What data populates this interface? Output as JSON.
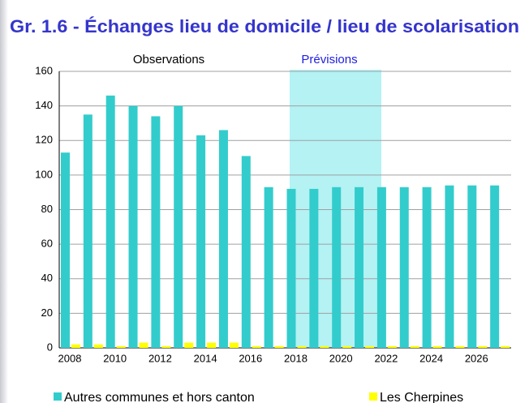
{
  "chart_data": {
    "type": "bar",
    "title": "Gr. 1.6 - Échanges lieu de domicile / lieu de scolarisation",
    "annotations": [
      "Observations",
      "Prévisions"
    ],
    "categories": [
      "2008",
      null,
      "2010",
      null,
      "2012",
      null,
      "2014",
      null,
      "2016",
      null,
      "2018",
      null,
      "2020",
      null,
      "2022",
      null,
      "2024",
      null,
      "2026",
      null
    ],
    "series": [
      {
        "name": "Autres communes et hors canton",
        "color": "#33cccc",
        "values": [
          113,
          135,
          146,
          140,
          134,
          140,
          123,
          126,
          111,
          93,
          92,
          92,
          93,
          93,
          93,
          93,
          93,
          94,
          94,
          94
        ]
      },
      {
        "name": "Les Cherpines",
        "color": "#ffff00",
        "values": [
          2,
          2,
          1,
          3,
          1,
          3,
          3,
          3,
          1,
          1,
          1,
          1,
          1,
          1,
          1,
          1,
          1,
          1,
          1,
          1
        ]
      }
    ],
    "ylim": [
      0,
      160
    ],
    "yticks": [
      0,
      20,
      40,
      60,
      80,
      100,
      120,
      140,
      160
    ],
    "grid": true
  }
}
